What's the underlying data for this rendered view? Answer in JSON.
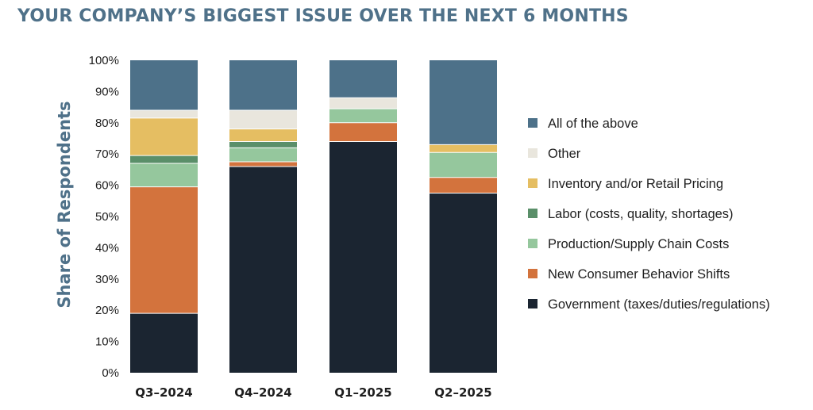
{
  "chart_data": {
    "type": "bar",
    "stacked": true,
    "title": "YOUR COMPANY’S BIGGEST ISSUE OVER THE NEXT 6 MONTHS",
    "ylabel": "Share of Respondents",
    "xlabel": "",
    "ylim": [
      0,
      100
    ],
    "y_ticks": [
      "0%",
      "10%",
      "20%",
      "30%",
      "40%",
      "50%",
      "60%",
      "70%",
      "80%",
      "90%",
      "100%"
    ],
    "categories": [
      "Q3–2024",
      "Q4–2024",
      "Q1–2025",
      "Q2–2025"
    ],
    "legend_position": "right",
    "series": [
      {
        "name": "Government (taxes/duties/regulations)",
        "color": "#1b2531",
        "values": [
          19,
          66,
          74,
          57.5
        ]
      },
      {
        "name": "New Consumer Behavior Shifts",
        "color": "#d3733d",
        "values": [
          40.5,
          1.5,
          6,
          5
        ]
      },
      {
        "name": "Production/Supply Chain Costs",
        "color": "#95c79d",
        "values": [
          7.5,
          4.5,
          4.5,
          8
        ]
      },
      {
        "name": "Labor (costs, quality, shortages)",
        "color": "#5a8f69",
        "values": [
          2.5,
          2,
          0,
          0
        ]
      },
      {
        "name": "Inventory and/or Retail Pricing",
        "color": "#e5be62",
        "values": [
          12,
          4,
          0,
          2.5
        ]
      },
      {
        "name": "Other",
        "color": "#e9e6dd",
        "values": [
          2.5,
          6,
          3.5,
          0
        ]
      },
      {
        "name": "All of the above",
        "color": "#4d7189",
        "values": [
          16,
          16,
          12,
          27
        ]
      }
    ]
  }
}
